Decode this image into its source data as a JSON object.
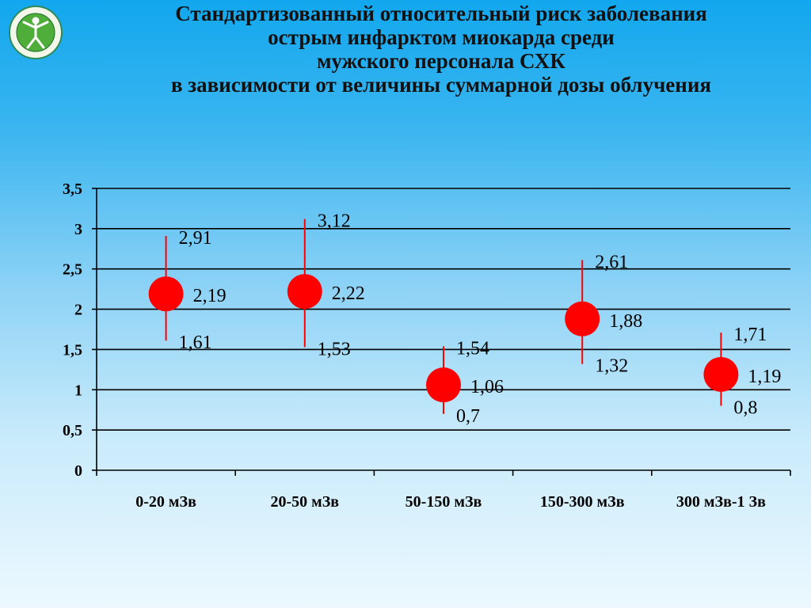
{
  "slide": {
    "title_lines": [
      "Стандартизованный относительный риск заболевания",
      "острым инфарктом миокарда среди",
      "мужского персонала СХК",
      "в зависимости от величины суммарной дозы облучения"
    ]
  },
  "colors": {
    "point": "#ff0000",
    "whisker": "#ff0000",
    "grid": "#000000"
  },
  "chart_data": {
    "type": "scatter",
    "categories": [
      "0-20 мЗв",
      "20-50 мЗв",
      "50-150 мЗв",
      "150-300 мЗв",
      "300 мЗв-1 Зв"
    ],
    "values": [
      2.19,
      2.22,
      1.06,
      1.88,
      1.19
    ],
    "lower": [
      1.61,
      1.53,
      0.7,
      1.32,
      0.8
    ],
    "upper": [
      2.91,
      3.12,
      1.54,
      2.61,
      1.71
    ],
    "value_labels": [
      "2,19",
      "2,22",
      "1,06",
      "1,88",
      "1,19"
    ],
    "lower_labels": [
      "1,61",
      "1,53",
      "0,7",
      "1,32",
      "0,8"
    ],
    "upper_labels": [
      "2,91",
      "3,12",
      "1,54",
      "2,61",
      "1,71"
    ],
    "ylim": [
      0,
      3.5
    ],
    "y_ticks": [
      "0",
      "0,5",
      "1",
      "1,5",
      "2",
      "2,5",
      "3",
      "3,5"
    ],
    "grid": true,
    "legend": "none"
  }
}
